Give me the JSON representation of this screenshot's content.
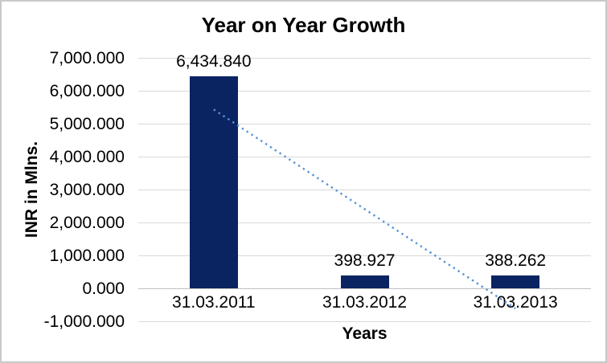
{
  "chart_data": {
    "type": "bar",
    "title": "Year on Year Growth",
    "xlabel": "Years",
    "ylabel": "INR in Mlns.",
    "categories": [
      "31.03.2011",
      "31.03.2012",
      "31.03.2013"
    ],
    "values": [
      6434.84,
      398.927,
      388.262
    ],
    "data_labels": [
      "6,434.840",
      "398.927",
      "388.262"
    ],
    "ylim": [
      -1000,
      7000
    ],
    "ytick_step": 1000,
    "ytick_labels": [
      "7,000.000",
      "6,000.000",
      "5,000.000",
      "4,000.000",
      "3,000.000",
      "2,000.000",
      "1,000.000",
      "0.000",
      "-1,000.000"
    ],
    "grid": true,
    "legend_position": "none",
    "trendline": {
      "style": "dotted",
      "start_value": 5430.6,
      "end_value": -616.0
    },
    "colors": {
      "bar": "#0A2361",
      "trendline": "#5592D4",
      "gridline": "#D9D9D9",
      "axis_line": "#C0C0C0",
      "text": "#000000",
      "border": "#C9C9C9",
      "background": "#FFFFFF"
    }
  }
}
